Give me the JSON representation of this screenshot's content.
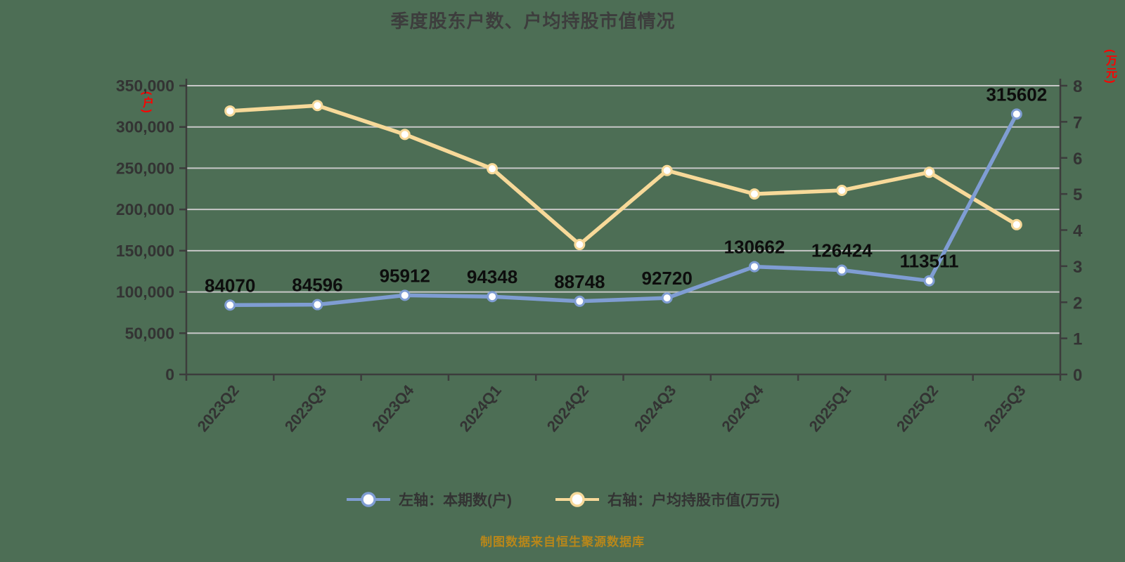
{
  "title": "季度股东户数、户均持股市值情况",
  "footer": "制图数据来自恒生聚源数据库",
  "colors": {
    "background": "#4d6e55",
    "grid": "#c7c7c7",
    "axis": "#3c3c3c",
    "tick_text": "#333333",
    "data_label": "#0d0d0d",
    "title_text": "#3d3d3d",
    "unit_text": "#ff0000",
    "source_text": "#b8871a",
    "series_left": "#7f9dd3",
    "series_right": "#f7d999",
    "marker_fill": "#ffffff"
  },
  "chart_data": {
    "type": "line",
    "title": "季度股东户数、户均持股市值情况",
    "categories": [
      "2023Q2",
      "2023Q3",
      "2023Q4",
      "2024Q1",
      "2024Q2",
      "2024Q3",
      "2024Q4",
      "2025Q1",
      "2025Q2",
      "2025Q3"
    ],
    "series": [
      {
        "name": "左轴：本期数(户)",
        "axis": "left",
        "color": "#7f9dd3",
        "values": [
          84070,
          84596,
          95912,
          94348,
          88748,
          92720,
          130662,
          126424,
          113511,
          315602
        ],
        "data_labels": true
      },
      {
        "name": "右轴：户均持股市值(万元)",
        "axis": "right",
        "color": "#f7d999",
        "values": [
          7.3,
          7.45,
          6.65,
          5.7,
          3.6,
          5.65,
          5.0,
          5.1,
          5.6,
          4.15
        ],
        "data_labels": false
      }
    ],
    "left_axis": {
      "unit": "(户)",
      "min": 0,
      "max": 350000,
      "step": 50000,
      "tick_labels": [
        "0",
        "50,000",
        "100,000",
        "150,000",
        "200,000",
        "250,000",
        "300,000",
        "350,000"
      ]
    },
    "right_axis": {
      "unit": "(万元)",
      "min": 0,
      "max": 8,
      "step": 1,
      "tick_labels": [
        "0",
        "1",
        "2",
        "3",
        "4",
        "5",
        "6",
        "7",
        "8"
      ]
    },
    "grid": "horizontal",
    "legend_position": "bottom",
    "x_label_rotation": -50,
    "source_note": "制图数据来自恒生聚源数据库"
  }
}
